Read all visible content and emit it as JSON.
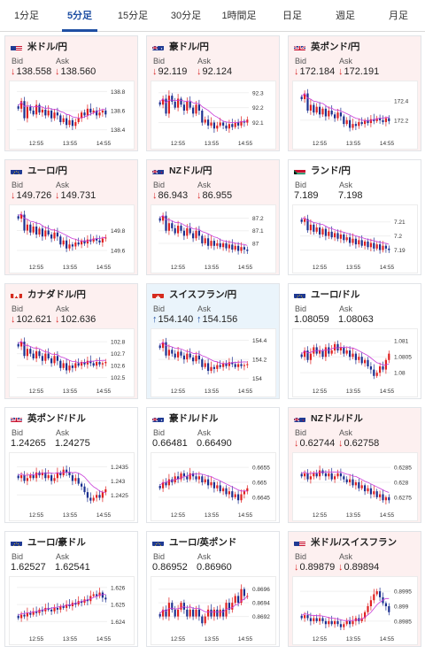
{
  "tabs": [
    {
      "label": "1分足",
      "active": false
    },
    {
      "label": "5分足",
      "active": true
    },
    {
      "label": "15分足",
      "active": false
    },
    {
      "label": "30分足",
      "active": false
    },
    {
      "label": "1時間足",
      "active": false
    },
    {
      "label": "日足",
      "active": false
    },
    {
      "label": "週足",
      "active": false
    },
    {
      "label": "月足",
      "active": false
    }
  ],
  "labels": {
    "bid": "Bid",
    "ask": "Ask"
  },
  "colors": {
    "up_candle": "#e02020",
    "down_candle": "#1a2f8f",
    "ma": "#c83bd8",
    "ma2": "#3ca8d8",
    "card_down": "#fdf0f0",
    "card_up": "#eaf4fb"
  },
  "pairs": [
    {
      "name": "米ドル/円",
      "flag": "us-flag",
      "trend": "down",
      "bid": "138.558",
      "ask": "138.560",
      "chart_data": {
        "type": "candlestick",
        "x_ticks": [
          "12:55",
          "13:55",
          "14:55"
        ],
        "y_ticks": [
          "138.8",
          "138.6",
          "138.4"
        ],
        "ylim": [
          138.35,
          138.85
        ],
        "series": [
          138.62,
          138.7,
          138.52,
          138.64,
          138.6,
          138.56,
          138.66,
          138.58,
          138.61,
          138.55,
          138.6,
          138.52,
          138.58,
          138.55,
          138.48,
          138.52,
          138.45,
          138.5,
          138.44,
          138.48,
          138.52,
          138.58,
          138.55,
          138.62,
          138.58,
          138.6,
          138.55,
          138.58,
          138.6,
          138.56
        ]
      }
    },
    {
      "name": "豪ドル/円",
      "flag": "au-flag",
      "trend": "down",
      "bid": "92.119",
      "ask": "92.124",
      "chart_data": {
        "type": "candlestick",
        "x_ticks": [
          "12:55",
          "13:55",
          "14:55"
        ],
        "y_ticks": [
          "92.3",
          "92.2",
          "92.1"
        ],
        "ylim": [
          92.02,
          92.34
        ],
        "series": [
          92.22,
          92.26,
          92.16,
          92.28,
          92.24,
          92.2,
          92.26,
          92.22,
          92.18,
          92.24,
          92.2,
          92.16,
          92.22,
          92.18,
          92.1,
          92.12,
          92.08,
          92.1,
          92.06,
          92.08,
          92.1,
          92.08,
          92.06,
          92.09,
          92.07,
          92.1,
          92.08,
          92.11,
          92.1,
          92.12
        ]
      }
    },
    {
      "name": "英ポンド/円",
      "flag": "gb-flag",
      "trend": "down",
      "bid": "172.184",
      "ask": "172.191",
      "chart_data": {
        "type": "candlestick",
        "x_ticks": [
          "12:55",
          "13:55",
          "14:55"
        ],
        "y_ticks": [
          "172.4",
          "172.2"
        ],
        "ylim": [
          172.05,
          172.55
        ],
        "series": [
          172.42,
          172.48,
          172.3,
          172.36,
          172.28,
          172.34,
          172.26,
          172.32,
          172.24,
          172.3,
          172.26,
          172.22,
          172.28,
          172.24,
          172.16,
          172.2,
          172.12,
          172.16,
          172.14,
          172.18,
          172.16,
          172.2,
          172.17,
          172.21,
          172.19,
          172.22,
          172.2,
          172.18,
          172.22,
          172.19
        ]
      }
    },
    {
      "name": "ユーロ/円",
      "flag": "eu-flag",
      "trend": "down",
      "bid": "149.726",
      "ask": "149.731",
      "chart_data": {
        "type": "candlestick",
        "x_ticks": [
          "12:55",
          "13:55",
          "14:55"
        ],
        "y_ticks": [
          "149.8",
          "149.6"
        ],
        "ylim": [
          149.52,
          150.0
        ],
        "series": [
          149.92,
          149.96,
          149.8,
          149.86,
          149.78,
          149.84,
          149.76,
          149.82,
          149.74,
          149.8,
          149.76,
          149.72,
          149.78,
          149.74,
          149.66,
          149.7,
          149.62,
          149.66,
          149.64,
          149.68,
          149.66,
          149.7,
          149.67,
          149.71,
          149.69,
          149.72,
          149.7,
          149.68,
          149.72,
          149.73
        ]
      }
    },
    {
      "name": "NZドル/円",
      "flag": "nz-flag",
      "trend": "down",
      "bid": "86.943",
      "ask": "86.955",
      "chart_data": {
        "type": "candlestick",
        "x_ticks": [
          "12:55",
          "13:55",
          "14:55"
        ],
        "y_ticks": [
          "87.2",
          "87.1",
          "87"
        ],
        "ylim": [
          86.88,
          87.26
        ],
        "series": [
          87.18,
          87.22,
          87.1,
          87.16,
          87.12,
          87.08,
          87.14,
          87.1,
          87.06,
          87.12,
          87.08,
          87.04,
          87.1,
          87.06,
          87.0,
          87.04,
          86.98,
          87.02,
          86.98,
          87.0,
          86.97,
          87.0,
          86.96,
          86.99,
          86.95,
          86.98,
          86.94,
          86.97,
          86.95,
          86.94
        ]
      }
    },
    {
      "name": "ランド/円",
      "flag": "za-flag",
      "trend": "none",
      "bid": "7.189",
      "ask": "7.198",
      "chart_data": {
        "type": "candlestick",
        "x_ticks": [
          "12:55",
          "13:55",
          "14:55"
        ],
        "y_ticks": [
          "7.21",
          "7.2",
          "7.19"
        ],
        "ylim": [
          7.184,
          7.218
        ],
        "series": [
          7.21,
          7.212,
          7.204,
          7.208,
          7.203,
          7.206,
          7.201,
          7.205,
          7.2,
          7.203,
          7.199,
          7.202,
          7.198,
          7.201,
          7.197,
          7.199,
          7.195,
          7.198,
          7.194,
          7.197,
          7.193,
          7.196,
          7.192,
          7.195,
          7.191,
          7.194,
          7.19,
          7.193,
          7.191,
          7.19
        ]
      }
    },
    {
      "name": "カナダドル/円",
      "flag": "ca-flag",
      "trend": "down",
      "bid": "102.621",
      "ask": "102.636",
      "chart_data": {
        "type": "candlestick",
        "x_ticks": [
          "12:55",
          "13:55",
          "14:55"
        ],
        "y_ticks": [
          "102.8",
          "102.7",
          "102.6",
          "102.5"
        ],
        "ylim": [
          102.46,
          102.86
        ],
        "series": [
          102.76,
          102.8,
          102.68,
          102.74,
          102.7,
          102.66,
          102.72,
          102.68,
          102.64,
          102.7,
          102.66,
          102.62,
          102.68,
          102.64,
          102.58,
          102.62,
          102.56,
          102.6,
          102.58,
          102.62,
          102.6,
          102.63,
          102.61,
          102.64,
          102.62,
          102.6,
          102.63,
          102.61,
          102.62,
          102.63
        ]
      }
    },
    {
      "name": "スイスフラン/円",
      "flag": "ch-flag",
      "trend": "up",
      "bid": "154.140",
      "ask": "154.156",
      "chart_data": {
        "type": "candlestick",
        "x_ticks": [
          "12:55",
          "13:55",
          "14:55"
        ],
        "y_ticks": [
          "154.4",
          "154.2",
          "154"
        ],
        "ylim": [
          153.96,
          154.46
        ],
        "series": [
          154.32,
          154.38,
          154.24,
          154.3,
          154.26,
          154.22,
          154.28,
          154.24,
          154.2,
          154.26,
          154.22,
          154.18,
          154.24,
          154.2,
          154.12,
          154.16,
          154.08,
          154.12,
          154.1,
          154.14,
          154.12,
          154.16,
          154.13,
          154.17,
          154.15,
          154.12,
          154.15,
          154.13,
          154.14,
          154.15
        ]
      }
    },
    {
      "name": "ユーロ/ドル",
      "flag": "eu-flag",
      "trend": "none",
      "bid": "1.08059",
      "ask": "1.08063",
      "chart_data": {
        "type": "candlestick",
        "x_ticks": [
          "12:55",
          "13:55",
          "14:55"
        ],
        "y_ticks": [
          "1.081",
          "1.0805",
          "1.08"
        ],
        "ylim": [
          1.0797,
          1.0812
        ],
        "series": [
          1.0805,
          1.0807,
          1.0804,
          1.0806,
          1.0808,
          1.0806,
          1.0807,
          1.0805,
          1.0808,
          1.0806,
          1.0807,
          1.0809,
          1.0807,
          1.0808,
          1.0806,
          1.0807,
          1.0805,
          1.0806,
          1.0804,
          1.0805,
          1.0803,
          1.0804,
          1.0802,
          1.0801,
          1.0799,
          1.08,
          1.0802,
          1.0801,
          1.0804,
          1.0806
        ]
      }
    },
    {
      "name": "英ポンド/ドル",
      "flag": "gb-flag",
      "trend": "none",
      "bid": "1.24265",
      "ask": "1.24275",
      "chart_data": {
        "type": "candlestick",
        "x_ticks": [
          "12:55",
          "13:55",
          "14:55"
        ],
        "y_ticks": [
          "1.2435",
          "1.243",
          "1.2425"
        ],
        "ylim": [
          1.2421,
          1.2438
        ],
        "series": [
          1.2431,
          1.2432,
          1.243,
          1.2431,
          1.2432,
          1.2431,
          1.2433,
          1.2432,
          1.2433,
          1.2431,
          1.2432,
          1.243,
          1.2431,
          1.2433,
          1.2432,
          1.2434,
          1.2433,
          1.2432,
          1.243,
          1.2431,
          1.2429,
          1.2428,
          1.2426,
          1.2424,
          1.2423,
          1.2424,
          1.2425,
          1.2424,
          1.2426,
          1.2427
        ]
      }
    },
    {
      "name": "豪ドル/ドル",
      "flag": "au-flag",
      "trend": "none",
      "bid": "0.66481",
      "ask": "0.66490",
      "chart_data": {
        "type": "candlestick",
        "x_ticks": [
          "12:55",
          "13:55",
          "14:55"
        ],
        "y_ticks": [
          "0.6655",
          "0.665",
          "0.6645"
        ],
        "ylim": [
          0.6642,
          0.6658
        ],
        "series": [
          0.6648,
          0.665,
          0.6649,
          0.6651,
          0.665,
          0.6652,
          0.6651,
          0.6653,
          0.6652,
          0.6651,
          0.6653,
          0.6652,
          0.6651,
          0.6652,
          0.665,
          0.6651,
          0.6649,
          0.665,
          0.6648,
          0.6649,
          0.6647,
          0.6648,
          0.6646,
          0.6647,
          0.6645,
          0.6646,
          0.6644,
          0.6646,
          0.6647,
          0.6648
        ]
      }
    },
    {
      "name": "NZドル/ドル",
      "flag": "nz-flag",
      "trend": "down",
      "bid": "0.62744",
      "ask": "0.62758",
      "chart_data": {
        "type": "candlestick",
        "x_ticks": [
          "12:55",
          "13:55",
          "14:55"
        ],
        "y_ticks": [
          "0.6285",
          "0.628",
          "0.6275"
        ],
        "ylim": [
          0.6272,
          0.6288
        ],
        "series": [
          0.6282,
          0.6283,
          0.6281,
          0.6282,
          0.6283,
          0.6282,
          0.6284,
          0.6283,
          0.6282,
          0.6283,
          0.6281,
          0.6282,
          0.6283,
          0.6282,
          0.6281,
          0.628,
          0.6281,
          0.6279,
          0.628,
          0.6278,
          0.6279,
          0.6277,
          0.6278,
          0.6276,
          0.6277,
          0.6275,
          0.6276,
          0.6274,
          0.6275,
          0.6274
        ]
      }
    },
    {
      "name": "ユーロ/豪ドル",
      "flag": "eu-flag",
      "trend": "none",
      "bid": "1.62527",
      "ask": "1.62541",
      "chart_data": {
        "type": "candlestick",
        "x_ticks": [
          "12:55",
          "13:55",
          "14:55"
        ],
        "y_ticks": [
          "1.626",
          "1.625",
          "1.624"
        ],
        "ylim": [
          1.6235,
          1.6263
        ],
        "series": [
          1.6242,
          1.6244,
          1.6243,
          1.6245,
          1.6244,
          1.6246,
          1.6245,
          1.6247,
          1.6246,
          1.6248,
          1.6247,
          1.6246,
          1.6248,
          1.6247,
          1.6249,
          1.6248,
          1.625,
          1.6249,
          1.6251,
          1.625,
          1.6252,
          1.6251,
          1.6253,
          1.6252,
          1.6255,
          1.6256,
          1.6255,
          1.6257,
          1.6254,
          1.6253
        ]
      }
    },
    {
      "name": "ユーロ/英ポンド",
      "flag": "eu-flag",
      "trend": "none",
      "bid": "0.86952",
      "ask": "0.86960",
      "chart_data": {
        "type": "candlestick",
        "x_ticks": [
          "12:55",
          "13:55",
          "14:55"
        ],
        "y_ticks": [
          "0.8696",
          "0.8694",
          "0.8692"
        ],
        "ylim": [
          0.869,
          0.8697
        ],
        "series": [
          0.8692,
          0.8693,
          0.8692,
          0.8694,
          0.8693,
          0.8692,
          0.8693,
          0.8694,
          0.8693,
          0.8692,
          0.8693,
          0.8692,
          0.8693,
          0.8692,
          0.8691,
          0.8692,
          0.8693,
          0.8692,
          0.8693,
          0.8692,
          0.8693,
          0.8692,
          0.8694,
          0.8693,
          0.8694,
          0.8695,
          0.8694,
          0.8696,
          0.8695,
          0.8695
        ]
      }
    },
    {
      "name": "米ドル/スイスフラン",
      "flag": "us-flag",
      "trend": "down",
      "bid": "0.89879",
      "ask": "0.89894",
      "chart_data": {
        "type": "candlestick",
        "x_ticks": [
          "12:55",
          "13:55",
          "14:55"
        ],
        "y_ticks": [
          "0.8995",
          "0.899",
          "0.8985"
        ],
        "ylim": [
          0.8982,
          0.8998
        ],
        "series": [
          0.8986,
          0.8987,
          0.8986,
          0.8985,
          0.8986,
          0.8985,
          0.8986,
          0.8985,
          0.8984,
          0.8985,
          0.8984,
          0.8985,
          0.8984,
          0.8983,
          0.8984,
          0.8985,
          0.8984,
          0.8985,
          0.8986,
          0.8985,
          0.8986,
          0.8988,
          0.899,
          0.8992,
          0.8994,
          0.8995,
          0.8993,
          0.8991,
          0.899,
          0.8988
        ]
      }
    }
  ]
}
